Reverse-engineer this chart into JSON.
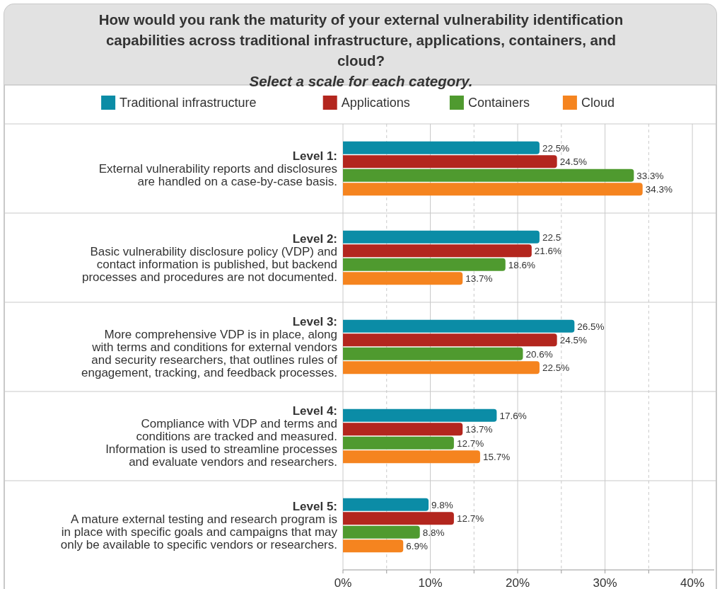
{
  "chart_data": {
    "type": "bar",
    "orientation": "horizontal",
    "title": "How would you rank the maturity of your external vulnerability identification capabilities across traditional infrastructure, applications, containers, and cloud?",
    "subtitle": "Select a scale for each category.",
    "categories": [
      "Level 1:\nExternal vulnerability reports and disclosures\nare handled on a case-by-case basis.",
      "Level 2:\nBasic vulnerability disclosure policy (VDP) and\ncontact information is published, but backend\nprocesses and procedures are not documented.",
      "Level 3:\nMore comprehensive VDP is in place, along\nwith terms and conditions for external vendors\nand security researchers, that outlines rules of\nengagement, tracking, and feedback processes.",
      "Level 4:\nCompliance with VDP and terms and\nconditions are tracked and measured.\nInformation is used to streamline processes\nand evaluate vendors and researchers.",
      "Level 5:\nA mature external testing and research program is\nin place with specific goals and campaigns that may\nonly be available to specific vendors or researchers."
    ],
    "series": [
      {
        "name": "Traditional infrastructure",
        "color": "#0b8ca6",
        "values": [
          22.5,
          22.5,
          26.5,
          17.6,
          9.8
        ],
        "value_labels": [
          "22.5%",
          "22.5",
          "26.5%",
          "17.6%",
          "9.8%"
        ]
      },
      {
        "name": "Applications",
        "color": "#b3261e",
        "values": [
          24.5,
          21.6,
          24.5,
          13.7,
          12.7
        ],
        "value_labels": [
          "24.5%",
          "21.6%",
          "24.5%",
          "13.7%",
          "12.7%"
        ]
      },
      {
        "name": "Containers",
        "color": "#4f9a2f",
        "values": [
          33.3,
          18.6,
          20.6,
          12.7,
          8.8
        ],
        "value_labels": [
          "33.3%",
          "18.6%",
          "20.6%",
          "12.7%",
          "8.8%"
        ]
      },
      {
        "name": "Cloud",
        "color": "#f5841f",
        "values": [
          34.3,
          13.7,
          22.5,
          15.7,
          6.9
        ],
        "value_labels": [
          "34.3%",
          "13.7%",
          "22.5%",
          "15.7%",
          "6.9%"
        ]
      }
    ],
    "xlim": [
      0,
      42.5
    ],
    "xticks": [
      {
        "value": 0,
        "label": "0%"
      },
      {
        "value": 5,
        "label": null
      },
      {
        "value": 10,
        "label": "10%"
      },
      {
        "value": 15,
        "label": null
      },
      {
        "value": 20,
        "label": "20%"
      },
      {
        "value": 25,
        "label": null
      },
      {
        "value": 30,
        "label": "30%"
      },
      {
        "value": 35,
        "label": null
      },
      {
        "value": 40,
        "label": "40%"
      }
    ],
    "grid": "x",
    "legend": "top"
  }
}
